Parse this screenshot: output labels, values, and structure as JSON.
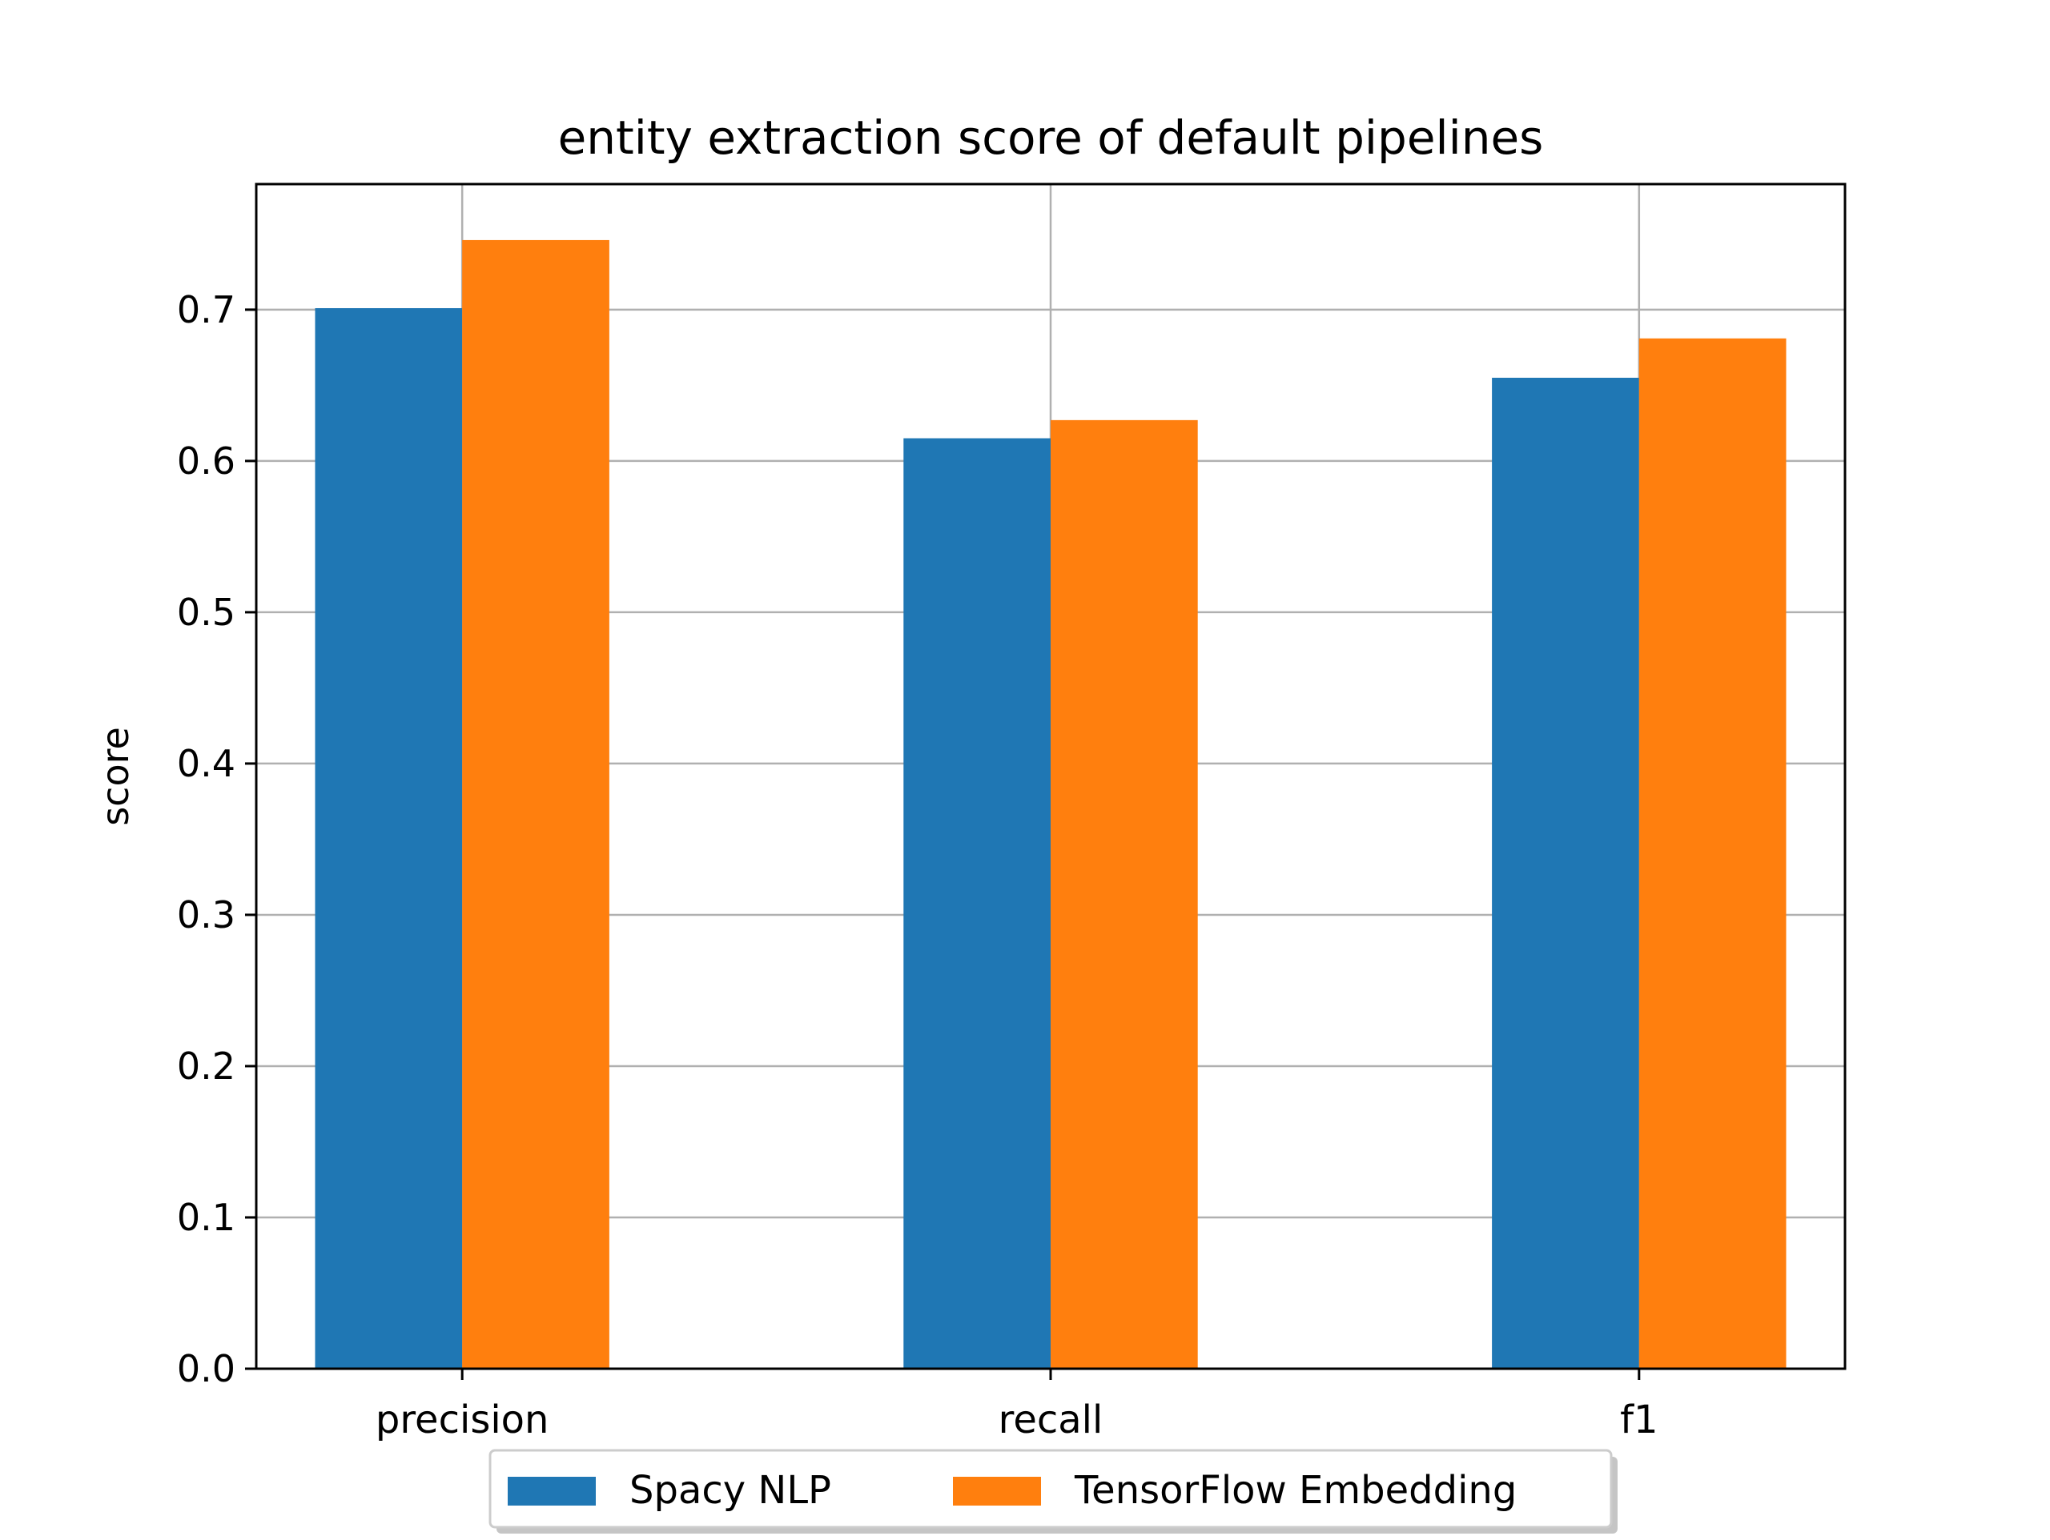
{
  "chart_data": {
    "type": "bar",
    "title": "entity extraction score of default pipelines",
    "xlabel": "",
    "ylabel": "score",
    "categories": [
      "precision",
      "recall",
      "f1"
    ],
    "series": [
      {
        "name": "Spacy NLP",
        "color": "#1f77b4",
        "values": [
          0.701,
          0.615,
          0.655
        ]
      },
      {
        "name": "TensorFlow Embedding",
        "color": "#ff7f0e",
        "values": [
          0.746,
          0.627,
          0.681
        ]
      }
    ],
    "ylim": [
      0,
      0.783
    ],
    "yticks": [
      "0.0",
      "0.1",
      "0.2",
      "0.3",
      "0.4",
      "0.5",
      "0.6",
      "0.7"
    ],
    "grid": true,
    "legend_position": "bottom-center"
  }
}
